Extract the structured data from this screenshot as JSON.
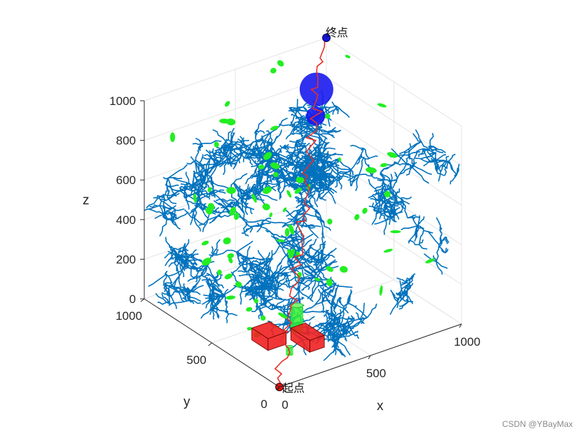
{
  "chart_data": {
    "type": "scatter",
    "projection": "3d-isometric",
    "xlabel": "x",
    "ylabel": "y",
    "zlabel": "z",
    "xlim": [
      0,
      1000
    ],
    "ylim": [
      0,
      1000
    ],
    "zlim": [
      0,
      1000
    ],
    "xticks": [
      "0",
      "500",
      "1000"
    ],
    "yticks": [
      "0",
      "500",
      "1000"
    ],
    "zticks": [
      "0",
      "200",
      "400",
      "600",
      "800",
      "1000"
    ],
    "grid": true,
    "annotations": {
      "start": "起点",
      "end": "终点"
    },
    "start_point": [
      0,
      0,
      0
    ],
    "end_point": [
      1000,
      1000,
      1000
    ],
    "colors": {
      "tree": "#0072BD",
      "path": "#e8302a",
      "node": "#22ee22",
      "sphere": "#1a1aee",
      "box": "#ee2020",
      "cylinder": "#33ee33",
      "axis": "#262626",
      "grid": "#e4e4e4"
    },
    "obstacles": {
      "spheres": [
        {
          "center": [
            790,
            790,
            900
          ],
          "radius": 80
        },
        {
          "center": [
            770,
            770,
            780
          ],
          "radius": 45
        }
      ],
      "boxes": [
        {
          "min": [
            160,
            300,
            0
          ],
          "max": [
            260,
            420,
            60
          ]
        },
        {
          "min": [
            300,
            180,
            0
          ],
          "max": [
            380,
            320,
            60
          ]
        }
      ],
      "cylinders": [
        {
          "center": [
            370,
            370
          ],
          "radius": 35,
          "z_range": [
            0,
            130
          ]
        },
        {
          "center": [
            215,
            215
          ],
          "radius": 20,
          "z_range": [
            0,
            40
          ]
        }
      ]
    }
  },
  "watermark": "CSDN @YBayMax"
}
